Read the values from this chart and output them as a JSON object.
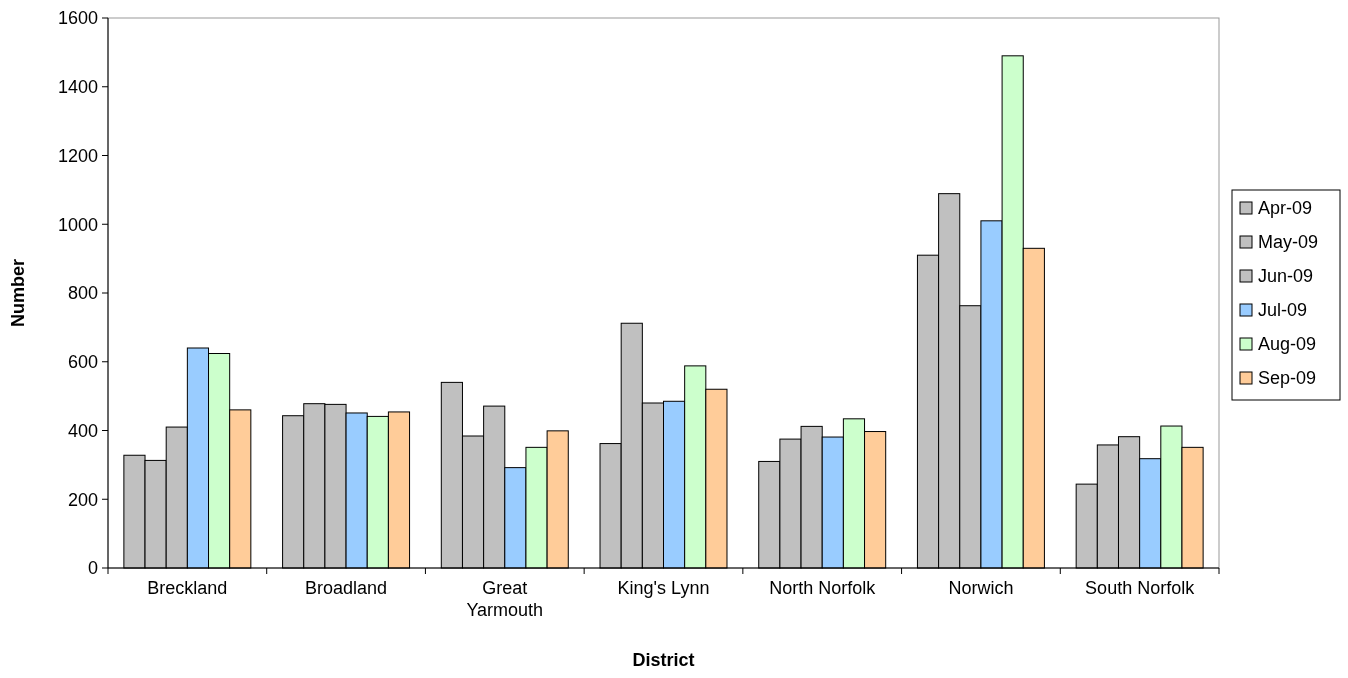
{
  "chart_data": {
    "type": "bar",
    "xlabel": "District",
    "ylabel": "Number",
    "categories": [
      "Breckland",
      "Broadland",
      "Great Yarmouth",
      "King's Lynn",
      "North Norfolk",
      "Norwich",
      "South Norfolk"
    ],
    "series": [
      {
        "name": "Apr-09",
        "color": "#c0c0c0",
        "values": [
          328,
          443,
          540,
          362,
          310,
          910,
          244
        ]
      },
      {
        "name": "May-09",
        "color": "#c0c0c0",
        "values": [
          313,
          478,
          384,
          712,
          375,
          1089,
          358
        ]
      },
      {
        "name": "Jun-09",
        "color": "#c0c0c0",
        "values": [
          410,
          476,
          471,
          480,
          412,
          763,
          382
        ]
      },
      {
        "name": "Jul-09",
        "color": "#99ccff",
        "values": [
          640,
          451,
          292,
          485,
          381,
          1010,
          318
        ]
      },
      {
        "name": "Aug-09",
        "color": "#ccffcc",
        "values": [
          624,
          441,
          351,
          588,
          434,
          1490,
          413
        ]
      },
      {
        "name": "Sep-09",
        "color": "#ffcc99",
        "values": [
          460,
          454,
          399,
          520,
          397,
          930,
          351
        ]
      }
    ],
    "ylim": [
      0,
      1600
    ],
    "yticks": [
      0,
      200,
      400,
      600,
      800,
      1000,
      1200,
      1400,
      1600
    ],
    "grid": false,
    "legend": "right"
  }
}
